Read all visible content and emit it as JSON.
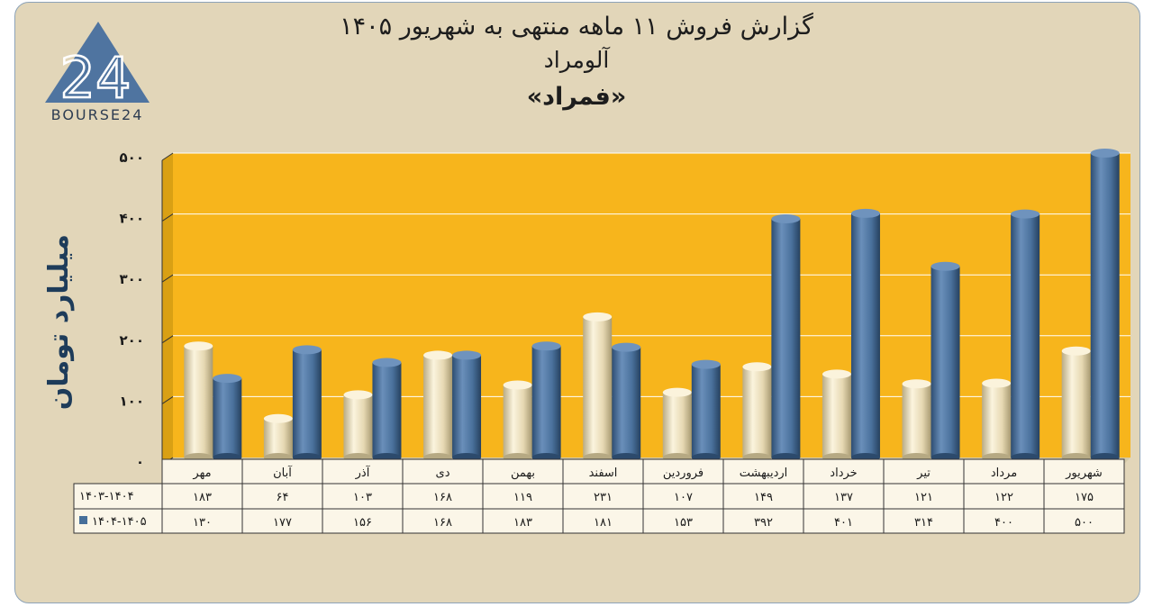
{
  "titles": {
    "line1": "گزارش  فروش ۱۱ ماهه منتهی به شهریور ۱۴۰۵",
    "line2": "آلومراد",
    "line3": "«فمراد»"
  },
  "logo": {
    "text": "BOURSE24",
    "number": "24"
  },
  "colors": {
    "plot_bg": "#f7b51c",
    "series1": "#e9dcb8",
    "series2": "#476f9a",
    "frame": "#e2d6b9"
  },
  "chart_data": {
    "type": "bar",
    "ylabel": "میلیارد تومان",
    "ylim": [
      0,
      500
    ],
    "yticks": [
      "۰",
      "۱۰۰",
      "۲۰۰",
      "۳۰۰",
      "۴۰۰",
      "۵۰۰"
    ],
    "ytick_values": [
      0,
      100,
      200,
      300,
      400,
      500
    ],
    "categories": [
      "مهر",
      "آبان",
      "آذر",
      "دی",
      "بهمن",
      "اسفند",
      "فروردین",
      "اردیبهشت",
      "خرداد",
      "تیر",
      "مرداد",
      "شهریور"
    ],
    "series": [
      {
        "name": "۱۴۰۳-۱۴۰۴",
        "values": [
          183,
          64,
          103,
          168,
          119,
          231,
          107,
          149,
          137,
          121,
          122,
          175
        ],
        "labels": [
          "۱۸۳",
          "۶۴",
          "۱۰۳",
          "۱۶۸",
          "۱۱۹",
          "۲۳۱",
          "۱۰۷",
          "۱۴۹",
          "۱۳۷",
          "۱۲۱",
          "۱۲۲",
          "۱۷۵"
        ]
      },
      {
        "name": "۱۴۰۴-۱۴۰۵",
        "values": [
          130,
          177,
          156,
          168,
          183,
          181,
          153,
          392,
          401,
          314,
          400,
          500
        ],
        "labels": [
          "۱۳۰",
          "۱۷۷",
          "۱۵۶",
          "۱۶۸",
          "۱۸۳",
          "۱۸۱",
          "۱۵۳",
          "۳۹۲",
          "۴۰۱",
          "۳۱۴",
          "۴۰۰",
          "۵۰۰"
        ]
      }
    ],
    "legend": "table-left"
  }
}
